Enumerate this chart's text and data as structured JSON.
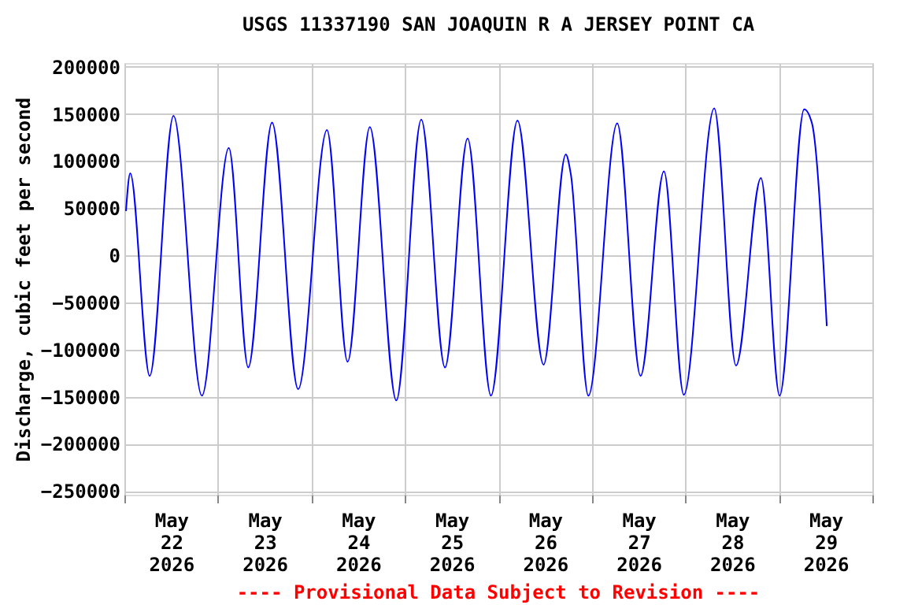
{
  "chart_data": {
    "type": "line",
    "title": "USGS 11337190 SAN JOAQUIN R A JERSEY POINT CA",
    "ylabel": "Discharge, cubic feet per second",
    "x": [
      "2026-05-22T00:24",
      "2026-05-22T01:30",
      "2026-05-22T06:30",
      "2026-05-22T12:36",
      "2026-05-22T19:54",
      "2026-05-23T02:48",
      "2026-05-23T07:48",
      "2026-05-23T13:54",
      "2026-05-23T20:36",
      "2026-05-24T04:00",
      "2026-05-24T09:18",
      "2026-05-24T15:00",
      "2026-05-24T21:48",
      "2026-05-25T04:12",
      "2026-05-25T10:18",
      "2026-05-25T16:06",
      "2026-05-25T22:06",
      "2026-05-26T04:54",
      "2026-05-26T11:36",
      "2026-05-26T17:18",
      "2026-05-26T18:36",
      "2026-05-26T23:06",
      "2026-05-27T06:30",
      "2026-05-27T12:30",
      "2026-05-27T18:30",
      "2026-05-27T23:36",
      "2026-05-28T07:24",
      "2026-05-28T13:00",
      "2026-05-28T19:24",
      "2026-05-29T00:12",
      "2026-05-29T06:30",
      "2026-05-29T08:30",
      "2026-05-29T12:18"
    ],
    "series": [
      {
        "color": "#0000ff",
        "values": [
          47000,
          87000,
          -128000,
          148000,
          -149000,
          114000,
          -119000,
          141000,
          -142000,
          133000,
          -113000,
          136000,
          -154000,
          144000,
          -119000,
          124000,
          -149000,
          143000,
          -116000,
          107000,
          86000,
          -149000,
          140000,
          -128000,
          89000,
          -148000,
          156000,
          -117000,
          82000,
          -149000,
          155000,
          140000,
          -75000
        ]
      }
    ],
    "xlim": [
      "2026-05-22T00:00",
      "2026-05-30T00:00"
    ],
    "xticks": [
      {
        "value": "2026-05-22T00:00",
        "label": null
      },
      {
        "value": "2026-05-22T12:00",
        "label": "May 22 2026"
      },
      {
        "value": "2026-05-23T00:00",
        "label": null
      },
      {
        "value": "2026-05-23T12:00",
        "label": "May 23 2026"
      },
      {
        "value": "2026-05-24T00:00",
        "label": null
      },
      {
        "value": "2026-05-24T12:00",
        "label": "May 24 2026"
      },
      {
        "value": "2026-05-25T00:00",
        "label": null
      },
      {
        "value": "2026-05-25T12:00",
        "label": "May 25 2026"
      },
      {
        "value": "2026-05-26T00:00",
        "label": null
      },
      {
        "value": "2026-05-26T12:00",
        "label": "May 26 2026"
      },
      {
        "value": "2026-05-27T00:00",
        "label": null
      },
      {
        "value": "2026-05-27T12:00",
        "label": "May 27 2026"
      },
      {
        "value": "2026-05-28T00:00",
        "label": null
      },
      {
        "value": "2026-05-28T12:00",
        "label": "May 28 2026"
      },
      {
        "value": "2026-05-29T00:00",
        "label": null
      },
      {
        "value": "2026-05-29T12:00",
        "label": "May 29 2026"
      },
      {
        "value": "2026-05-30T00:00",
        "label": null
      }
    ],
    "ylim": [
      -254000,
      204000
    ],
    "yticks": [
      -250000,
      -200000,
      -150000,
      -100000,
      -50000,
      0,
      50000,
      100000,
      150000,
      200000
    ],
    "grid": true,
    "marker": "none",
    "line_style": "solid",
    "annotations": [
      {
        "text": "---- Provisional Data Subject to Revision ----"
      }
    ]
  }
}
